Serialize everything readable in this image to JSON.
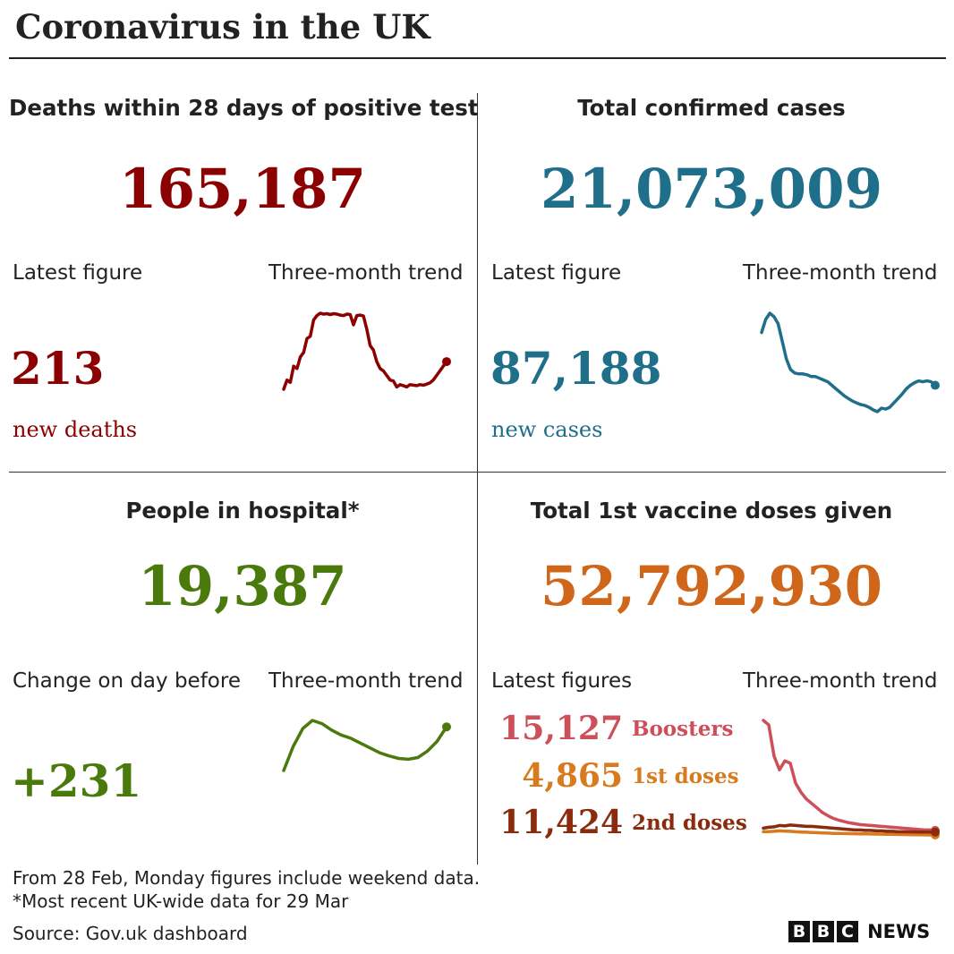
{
  "header": {
    "title": "Coronavirus in the UK"
  },
  "colors": {
    "deaths": "#8b0000",
    "cases": "#1f6f8b",
    "hospital": "#4a7a0c",
    "vaccine": "#d0661a",
    "boosters": "#cc4f5a",
    "first_doses": "#d87a1e",
    "second_doses": "#8b2b0d"
  },
  "panels": {
    "deaths": {
      "title": "Deaths within 28 days of positive test",
      "total": "165,187",
      "latest_label": "Latest figure",
      "trend_label": "Three-month trend",
      "latest_value": "213",
      "latest_unit": "new deaths"
    },
    "cases": {
      "title": "Total confirmed cases",
      "total": "21,073,009",
      "latest_label": "Latest figure",
      "trend_label": "Three-month trend",
      "latest_value": "87,188",
      "latest_unit": "new cases"
    },
    "hospital": {
      "title": "People in hospital*",
      "total": "19,387",
      "latest_label": "Change on day before",
      "trend_label": "Three-month trend",
      "latest_value": "+231"
    },
    "vaccine": {
      "title": "Total 1st vaccine doses given",
      "total": "52,792,930",
      "latest_label": "Latest figures",
      "trend_label": "Three-month trend",
      "rows": [
        {
          "value": "15,127",
          "label": "Boosters"
        },
        {
          "value": "4,865",
          "label": "1st doses"
        },
        {
          "value": "11,424",
          "label": "2nd doses"
        }
      ]
    }
  },
  "footer": {
    "note1": "From 28 Feb, Monday figures include weekend data.",
    "note2": "*Most recent UK-wide data for 29 Mar",
    "source": "Source: Gov.uk dashboard"
  },
  "branding": {
    "letters": [
      "B",
      "B",
      "C"
    ],
    "news": "NEWS"
  },
  "chart_data": [
    {
      "type": "line",
      "series": [
        {
          "values": [
            120,
            140,
            135,
            170,
            165,
            190,
            200,
            230,
            235,
            270,
            280,
            285,
            283,
            284,
            282,
            284,
            283,
            281,
            280,
            283,
            282,
            260,
            280,
            281,
            279,
            250,
            215,
            205,
            180,
            165,
            160,
            150,
            140,
            138,
            125,
            130,
            128,
            125,
            130,
            129,
            128,
            130,
            129,
            131,
            134,
            140,
            150,
            160,
            170,
            180
          ]
        }
      ]
    },
    {
      "type": "line",
      "series": [
        {
          "values": [
            160,
            175,
            182,
            178,
            170,
            150,
            130,
            118,
            114,
            113,
            113,
            112,
            110,
            110,
            108,
            106,
            104,
            100,
            96,
            92,
            88,
            85,
            82,
            80,
            78,
            77,
            75,
            72,
            70,
            74,
            73,
            75,
            80,
            85,
            90,
            96,
            100,
            103,
            105,
            104,
            105,
            104,
            100
          ]
        }
      ]
    },
    {
      "type": "line",
      "series": [
        {
          "values": [
            40,
            70,
            92,
            102,
            98,
            90,
            84,
            80,
            74,
            68,
            62,
            58,
            55,
            54,
            56,
            64,
            76,
            94
          ]
        }
      ]
    },
    {
      "type": "line",
      "series": [
        {
          "values": [
            260,
            250,
            180,
            150,
            170,
            165,
            120,
            100,
            85,
            75,
            65,
            55,
            48,
            42,
            38,
            35,
            32,
            30,
            28,
            27,
            26,
            25,
            24,
            23,
            22,
            21,
            20,
            19,
            18,
            17,
            16,
            16,
            15
          ]
        },
        {
          "values": [
            12,
            12.5,
            13,
            14,
            13.5,
            13,
            12,
            11.5,
            11,
            10.5,
            10,
            9.5,
            9,
            8.5,
            8.2,
            8,
            7.8,
            7.6,
            7.4,
            7.2,
            7,
            6.8,
            6.6,
            6.4,
            6.2,
            6,
            5.8,
            5.6,
            5.4,
            5.2,
            5,
            4.9,
            4.9
          ]
        },
        {
          "values": [
            20,
            22,
            23,
            26,
            25,
            27,
            26,
            25,
            24,
            24,
            23,
            22,
            21,
            20,
            19,
            18,
            17,
            16,
            16,
            15,
            15,
            14,
            14,
            13,
            13,
            12,
            12,
            11.8,
            11.6,
            11.5,
            11.4,
            11.4,
            11.4
          ]
        }
      ]
    }
  ]
}
